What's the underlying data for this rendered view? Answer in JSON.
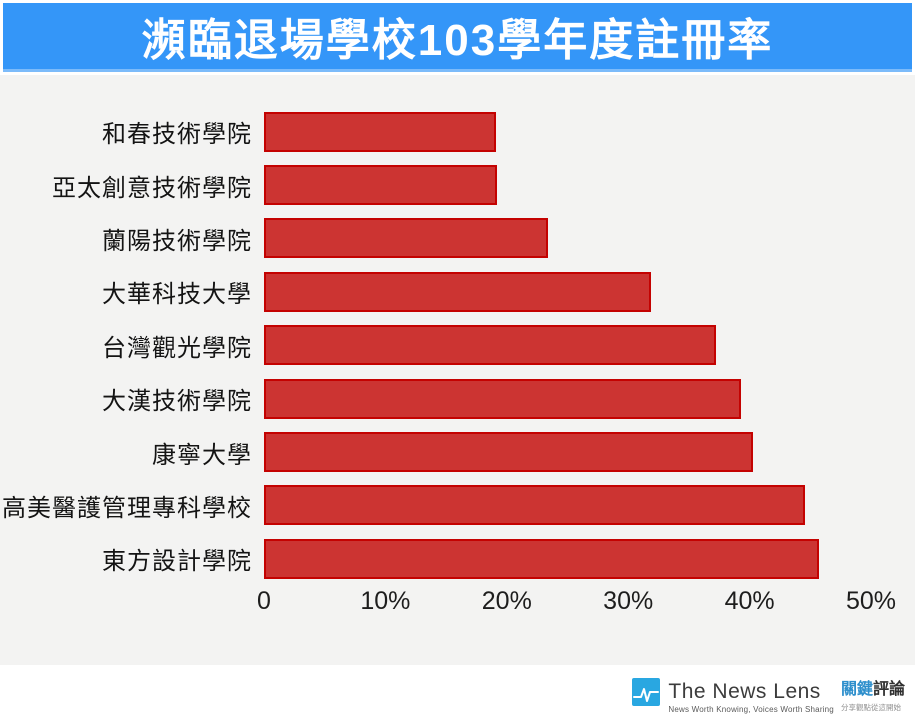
{
  "title": "瀕臨退場學校103學年度註冊率",
  "colors": {
    "header_bg": "#3496F8",
    "header_edge": "#7CBBFA",
    "chart_bg": "#F3F3F2",
    "bar_fill": "#CC3432",
    "bar_border": "#C40201",
    "label_text": "#141414",
    "title_text": "#FFFFFF",
    "logo_blue": "#29A7E1",
    "brand_cjk_blue": "#2E8FCC"
  },
  "chart_data": {
    "type": "bar",
    "orientation": "horizontal",
    "title": "瀕臨退場學校103學年度註冊率",
    "categories": [
      "和春技術學院",
      "亞太創意技術學院",
      "蘭陽技術學院",
      "大華科技大學",
      "台灣觀光學院",
      "大漢技術學院",
      "康寧大學",
      "高美醫護管理專科學校",
      "東方設計學院"
    ],
    "values": [
      19.1,
      19.2,
      23.4,
      31.9,
      37.2,
      39.3,
      40.3,
      44.6,
      45.7
    ],
    "unit": "%",
    "xlabel": "",
    "ylabel": "",
    "xlim": [
      0,
      50
    ],
    "xticks": {
      "values": [
        0,
        10,
        20,
        30,
        40,
        50
      ],
      "labels": [
        "0",
        "10%",
        "20%",
        "30%",
        "40%",
        "50%"
      ]
    },
    "grid": false,
    "legend": null,
    "bar_color": "#CC3432"
  },
  "footer": {
    "brand_name": "The News Lens",
    "brand_tagline": "News Worth Knowing, Voices Worth Sharing",
    "brand_cjk_primary": "關鍵",
    "brand_cjk_secondary": "評論",
    "brand_cjk_tagline": "分享觀點從這開始"
  }
}
